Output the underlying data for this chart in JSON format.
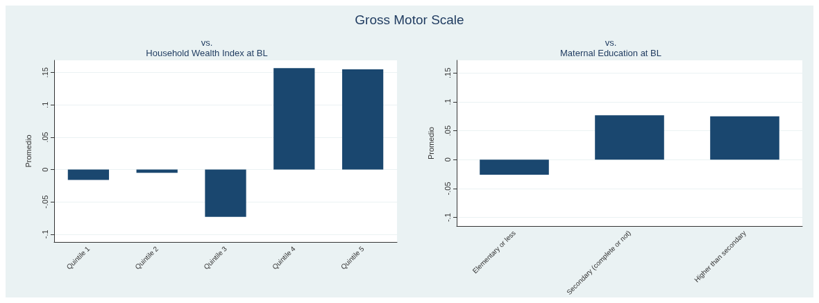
{
  "chart_data": [
    {
      "type": "bar",
      "title": "Gross Motor Scale",
      "subtitle": "vs.\nHousehold Wealth Index at BL",
      "ylabel": "Promedio",
      "categories": [
        "Quintile 1",
        "Quintile 2",
        "Quintile 3",
        "Quintile 4",
        "Quintile 5"
      ],
      "values": [
        -0.016,
        -0.005,
        -0.073,
        0.157,
        0.155
      ],
      "color": "#1a476f",
      "ylim": [
        -0.112,
        0.169
      ],
      "yticks": [
        {
          "value": -0.1,
          "label": "-.1"
        },
        {
          "value": -0.05,
          "label": "-.05"
        },
        0,
        {
          "value": 0.05,
          "label": ".05"
        },
        {
          "value": 0.1,
          "label": ".1"
        },
        {
          "value": 0.15,
          "label": ".15"
        }
      ],
      "grid": "y"
    },
    {
      "type": "bar",
      "subtitle": "vs.\nMaternal Education at BL",
      "ylabel": "Promedio",
      "categories": [
        "Elementary or less",
        "Secondary (complete or not)",
        "Higher than secondary"
      ],
      "values": [
        -0.026,
        0.077,
        0.075
      ],
      "color": "#1a476f",
      "ylim": [
        -0.115,
        0.172
      ],
      "yticks": [
        {
          "value": -0.1,
          "label": "-.1"
        },
        {
          "value": -0.05,
          "label": "-.05"
        },
        0,
        {
          "value": 0.05,
          "label": ".05"
        },
        {
          "value": 0.1,
          "label": ".1"
        },
        {
          "value": 0.15,
          "label": ".15"
        }
      ],
      "grid": "y"
    }
  ]
}
